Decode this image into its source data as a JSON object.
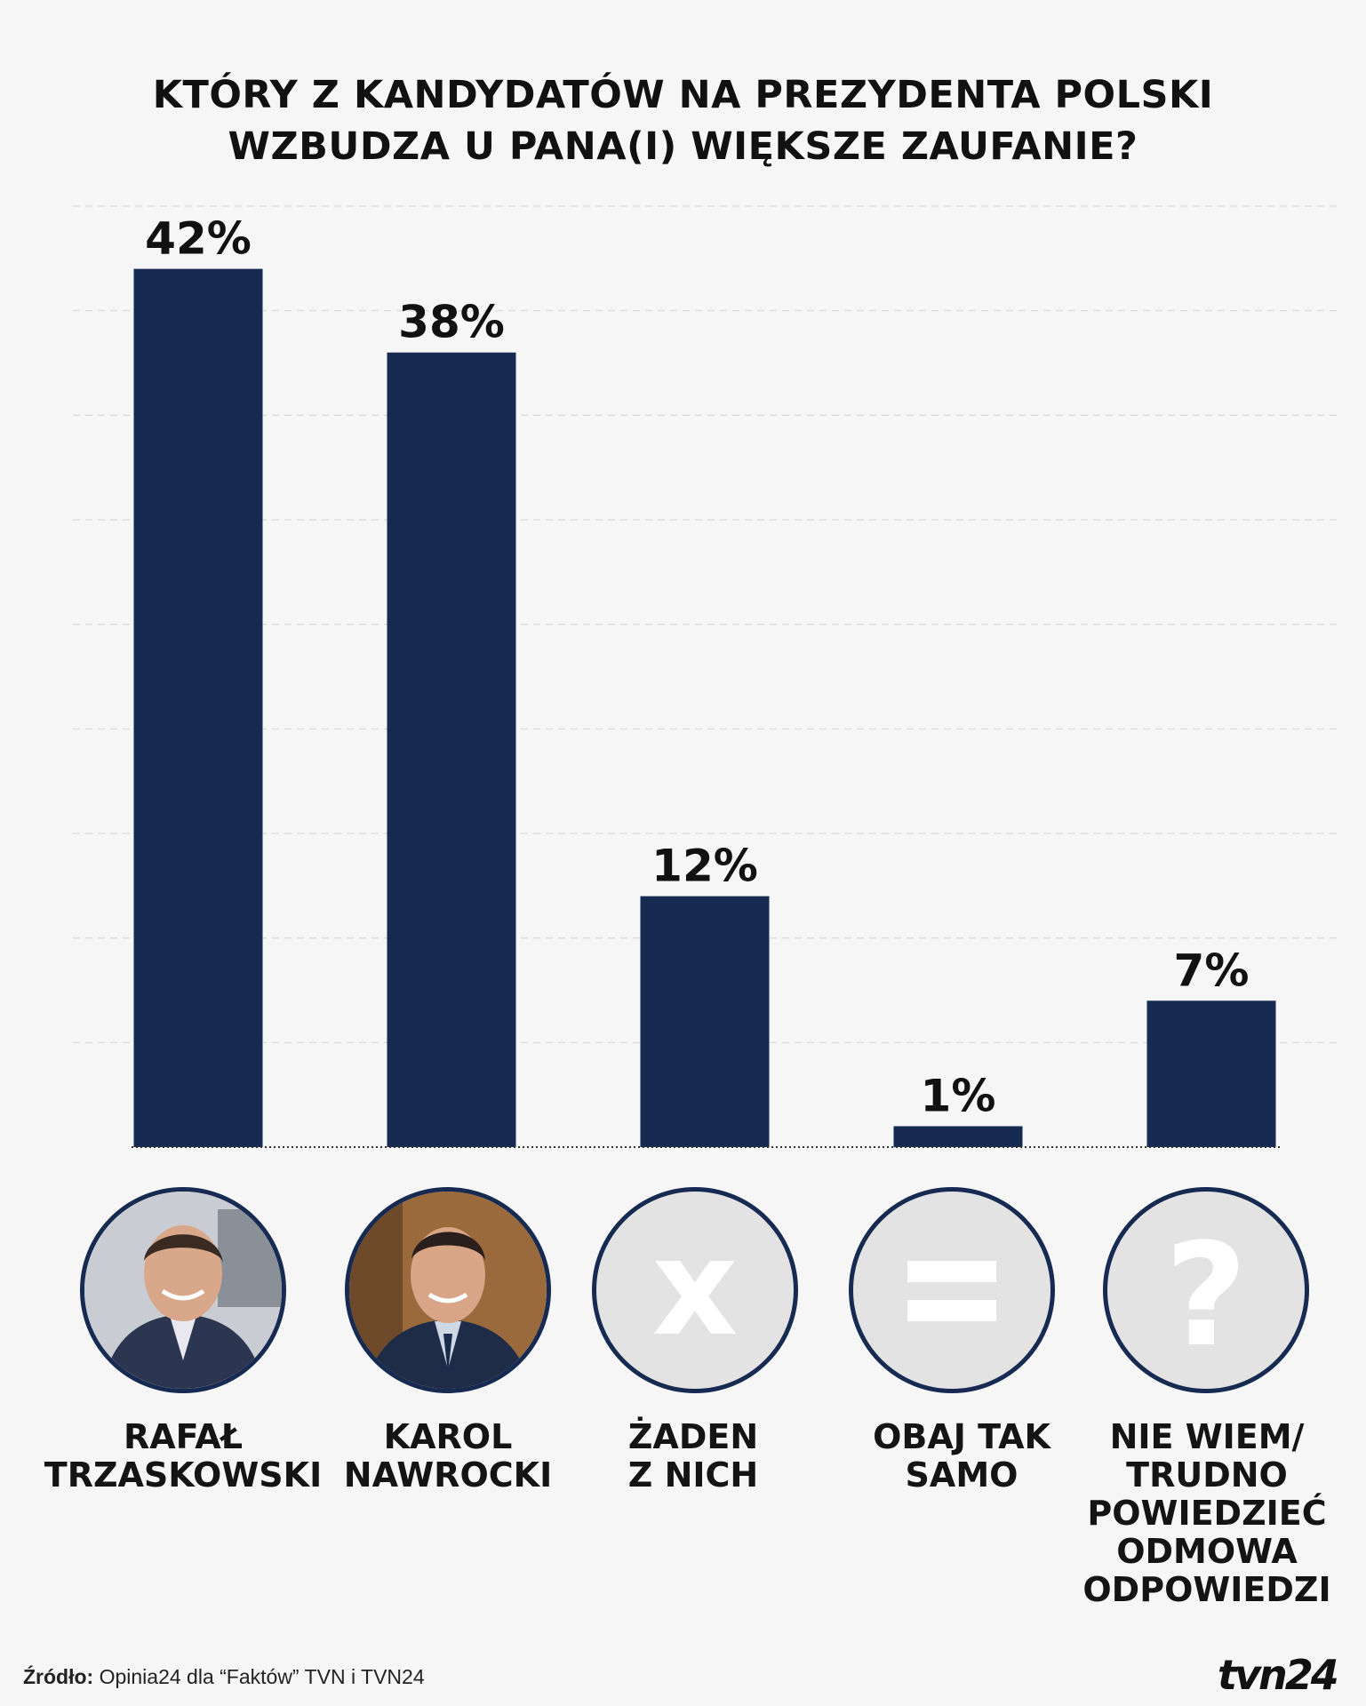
{
  "header": {
    "title_line1": "KTÓRY Z KANDYDATÓW NA PREZYDENTA POLSKI",
    "title_line2": "WZBUDZA U PANA(I) WIĘKSZE ZAUFANIE?"
  },
  "colors": {
    "bar": "#172a52",
    "background": "#f6f6f6",
    "gridline": "#dddddd",
    "icon_circle": "#e3e3e3"
  },
  "chart_data": {
    "type": "bar",
    "title": "KTÓRY Z KANDYDATÓW NA PREZYDENTA POLSKI WZBUDZA U PANA(I) WIĘKSZE ZAUFANIE?",
    "categories": [
      "RAFAŁ TRZASKOWSKI",
      "KAROL NAWROCKI",
      "ŻADEN Z NICH",
      "OBAJ TAK SAMO",
      "NIE WIEM/ TRUDNO POWIEDZIEĆ ODMOWA ODPOWIEDZI"
    ],
    "values": [
      42,
      38,
      12,
      1,
      7
    ],
    "data_labels": [
      "42%",
      "38%",
      "12%",
      "1%",
      "7%"
    ],
    "ylim": [
      0,
      45
    ],
    "grid": true,
    "xlabel": "",
    "ylabel": ""
  },
  "categories_display": [
    {
      "lines": [
        "RAFAŁ",
        "TRZASKOWSKI"
      ],
      "icon": "person-photo-icon"
    },
    {
      "lines": [
        "KAROL",
        "NAWROCKI"
      ],
      "icon": "person-photo-icon"
    },
    {
      "lines": [
        "ŻADEN",
        "Z NICH"
      ],
      "icon": "x-mark-icon"
    },
    {
      "lines": [
        "OBAJ TAK",
        "SAMO"
      ],
      "icon": "equals-icon"
    },
    {
      "lines": [
        "NIE WIEM/",
        "TRUDNO",
        "POWIEDZIEĆ",
        "ODMOWA",
        "ODPOWIEDZI"
      ],
      "icon": "question-mark-icon"
    }
  ],
  "footer": {
    "source_label": "Źródło:",
    "source_text": "Opinia24 dla “Faktów” TVN i TVN24",
    "logo": "tvn24"
  }
}
